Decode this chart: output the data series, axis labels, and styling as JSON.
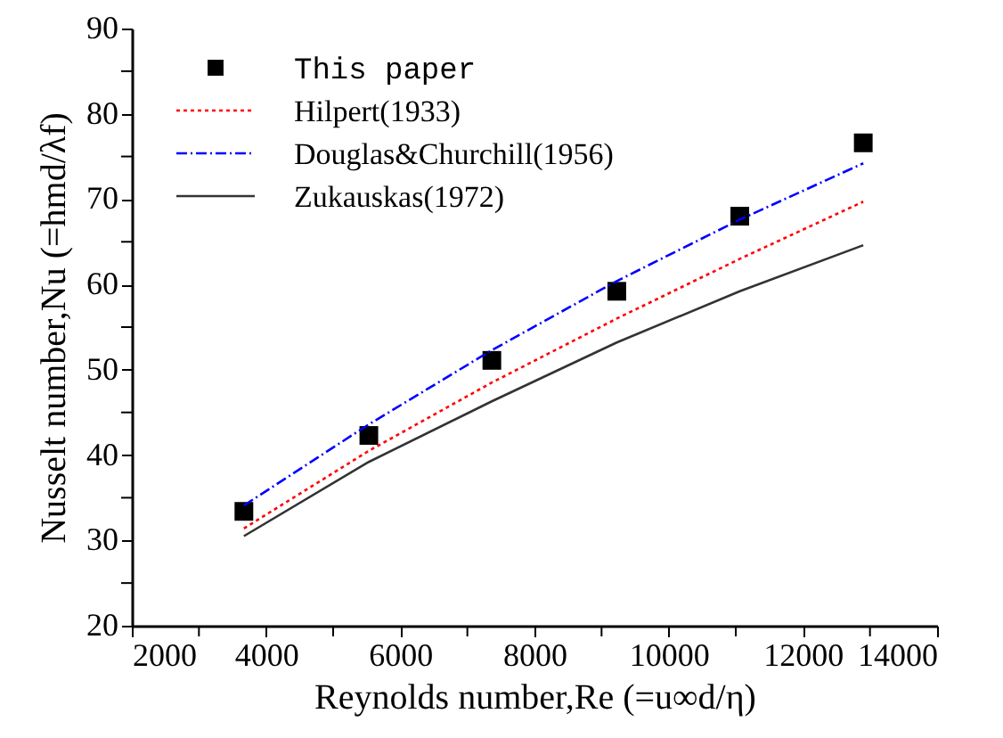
{
  "chart_data": {
    "type": "line",
    "xlabel": "Reynolds number,Re (=u∞d/η)",
    "ylabel": "Nusselt number,Nu (=hmd/λf)",
    "xlim": [
      2000,
      14000
    ],
    "xticks": [
      2000,
      {
        "value": 3000,
        "label": null
      },
      4000,
      {
        "value": 5000,
        "label": null
      },
      6000,
      {
        "value": 7000,
        "label": null
      },
      8000,
      {
        "value": 9000,
        "label": null
      },
      10000,
      {
        "value": 11000,
        "label": null
      },
      12000,
      {
        "value": 13000,
        "label": null
      },
      14000
    ],
    "ylim": [
      20,
      90
    ],
    "yticks": [
      20,
      {
        "value": 25,
        "label": null
      },
      30,
      {
        "value": 35,
        "label": null
      },
      40,
      {
        "value": 45,
        "label": null
      },
      50,
      {
        "value": 55,
        "label": null
      },
      60,
      {
        "value": 65,
        "label": null
      },
      70,
      {
        "value": 75,
        "label": null
      },
      80,
      {
        "value": 85,
        "label": null
      },
      90
    ],
    "grid": false,
    "legend": "top left",
    "series": [
      {
        "name": "This paper",
        "type": "scatter",
        "marker": "square",
        "color": "#000000",
        "x": [
          3670,
          5532,
          7365,
          9227,
          11060,
          12900
        ],
        "values": [
          33.4,
          42.3,
          51.1,
          59.2,
          68.0,
          76.6
        ]
      },
      {
        "name": "Hilpert(1933)",
        "line_style": "dotted",
        "color": "#ff0000",
        "x": [
          3670,
          5532,
          7365,
          9227,
          11060,
          12900
        ],
        "values": [
          31.4,
          40.5,
          48.5,
          56.0,
          63.0,
          69.7
        ]
      },
      {
        "name": "Douglas&Churchill(1956)",
        "line_style": "dashdot",
        "color": "#0000ff",
        "x": [
          3670,
          5532,
          7365,
          9227,
          11060,
          12900
        ],
        "values": [
          34.1,
          43.6,
          52.3,
          60.4,
          67.6,
          74.2
        ]
      },
      {
        "name": "Zukauskas(1972)",
        "line_style": "solid",
        "color": "#333333",
        "x": [
          3670,
          5532,
          7365,
          9227,
          11060,
          12900
        ],
        "values": [
          30.5,
          39.2,
          46.3,
          53.2,
          59.2,
          64.6
        ]
      }
    ]
  }
}
